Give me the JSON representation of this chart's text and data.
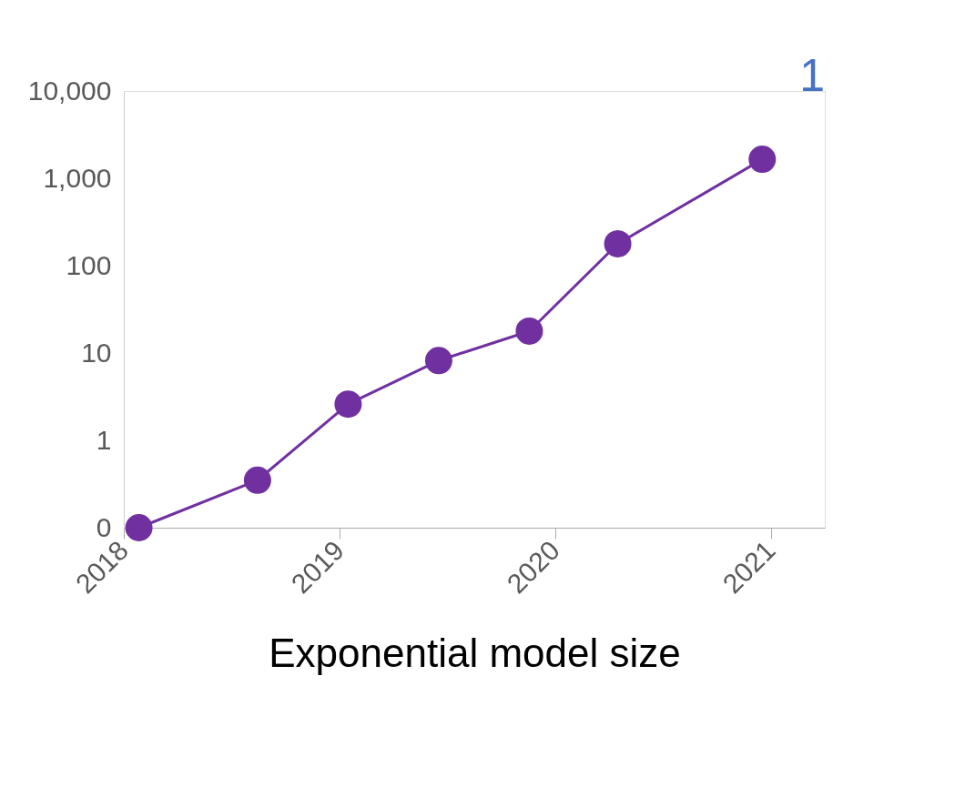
{
  "chart_data": {
    "type": "line",
    "xlabel": "Exponential model size",
    "x": [
      2018.07,
      2018.62,
      2019.04,
      2019.46,
      2019.88,
      2020.29,
      2020.96
    ],
    "series": [
      {
        "color": "#7030a0",
        "values": [
          0.1,
          0.35,
          2.6,
          8.2,
          17.8,
          178,
          1650
        ]
      }
    ],
    "xlim": [
      2018,
      2021.25
    ],
    "xticks": [
      2018,
      2019,
      2020,
      2021
    ],
    "ylim": [
      0.1,
      10000
    ],
    "yticks": [
      {
        "value": 0.1,
        "label": "0"
      },
      1,
      10,
      100,
      {
        "value": 1000,
        "label": "1,000"
      },
      {
        "value": 10000,
        "label": "10,000"
      }
    ],
    "log": "y",
    "grid": false,
    "legend": false,
    "marker": "circle",
    "line_style": "solid",
    "annotations": [
      "1"
    ]
  }
}
